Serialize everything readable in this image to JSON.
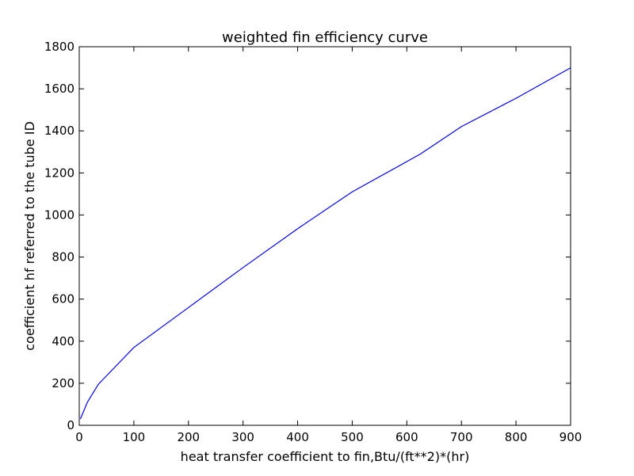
{
  "chart_data": {
    "type": "line",
    "title": "weighted fin efficiency curve",
    "xlabel": "heat transfer coefficient to fin,Btu/(ft**2)*(hr)",
    "ylabel": "coefficient hf referred to the tube ID",
    "xlim": [
      0,
      900
    ],
    "ylim": [
      0,
      1800
    ],
    "xticks": [
      0,
      100,
      200,
      300,
      400,
      500,
      600,
      700,
      800,
      900
    ],
    "yticks": [
      0,
      200,
      400,
      600,
      800,
      1000,
      1200,
      1400,
      1600,
      1800
    ],
    "grid": false,
    "series": [
      {
        "color": "#0000ff",
        "x": [
          2,
          15,
          35,
          100,
          200,
          300,
          400,
          500,
          625,
          700,
          800,
          900
        ],
        "y": [
          30,
          110,
          195,
          370,
          560,
          750,
          935,
          1110,
          1290,
          1420,
          1555,
          1700
        ]
      }
    ]
  }
}
